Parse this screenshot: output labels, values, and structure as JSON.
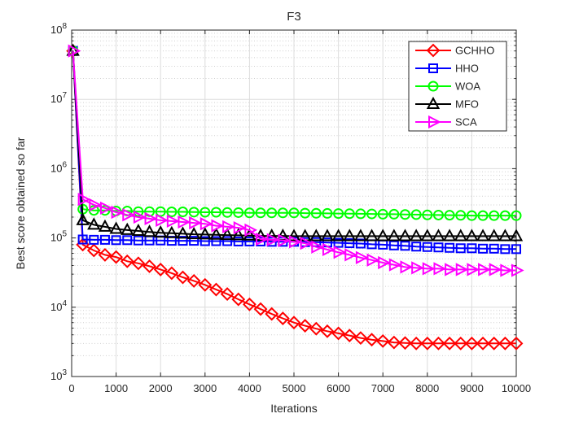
{
  "figure": {
    "background": "#ffffff",
    "axis_color": "#262626",
    "major_grid_color": "#dcdcdc",
    "minor_grid_color": "#cfcfcf"
  },
  "chart_data": {
    "type": "line",
    "title": "F3",
    "xlabel": "Iterations",
    "ylabel": "Best score obtained so far",
    "y_scale": "log",
    "x_range": [
      0,
      10000
    ],
    "y_range": [
      1000,
      100000000
    ],
    "x_ticks": [
      0,
      1000,
      2000,
      3000,
      4000,
      5000,
      6000,
      7000,
      8000,
      9000,
      10000
    ],
    "y_tick_exponents": [
      3,
      4,
      5,
      6,
      7,
      8
    ],
    "y_tick_base": "10",
    "grid": {
      "major": true,
      "minor_horizontal_dotted": true
    },
    "legend": {
      "position": "northeast-inside",
      "border_color": "#262626",
      "background": "#ffffff"
    },
    "x_values": [
      30,
      250,
      500,
      750,
      1000,
      1250,
      1500,
      1750,
      2000,
      2250,
      2500,
      2750,
      3000,
      3250,
      3500,
      3750,
      4000,
      4250,
      4500,
      4750,
      5000,
      5250,
      5500,
      5750,
      6000,
      6250,
      6500,
      6750,
      7000,
      7250,
      7500,
      7750,
      8000,
      8250,
      8500,
      8750,
      9000,
      9250,
      9500,
      9750,
      10000
    ],
    "series": [
      {
        "name": "GCHHO",
        "color": "#ff0000",
        "marker": "diamond",
        "values": [
          50000000,
          80000,
          66000,
          57000,
          53000,
          46000,
          43000,
          39000,
          35000,
          31000,
          27000,
          24000,
          21000,
          18000,
          15500,
          13000,
          11000,
          9400,
          8000,
          6900,
          6000,
          5400,
          4900,
          4500,
          4200,
          3900,
          3600,
          3400,
          3250,
          3100,
          3050,
          3000,
          3000,
          3000,
          3000,
          3000,
          3000,
          3000,
          3000,
          3000,
          3000
        ]
      },
      {
        "name": "HHO",
        "color": "#0000ff",
        "marker": "square",
        "values": [
          50000000,
          95000,
          94000,
          94000,
          93000,
          93000,
          92000,
          92000,
          92000,
          91000,
          91000,
          91000,
          90000,
          90000,
          90000,
          89000,
          89000,
          89000,
          88000,
          88000,
          88000,
          87000,
          87000,
          86000,
          85000,
          84000,
          83000,
          81000,
          80000,
          78000,
          77000,
          75000,
          74000,
          73000,
          72000,
          71000,
          71000,
          70000,
          70000,
          69000,
          69000
        ]
      },
      {
        "name": "WOA",
        "color": "#00ff00",
        "marker": "circle",
        "values": [
          50000000,
          260000,
          250000,
          250000,
          245000,
          245000,
          240000,
          240000,
          240000,
          238000,
          238000,
          236000,
          235000,
          235000,
          233000,
          232000,
          230000,
          230000,
          230000,
          230000,
          230000,
          228000,
          227000,
          226000,
          225000,
          224000,
          223000,
          222000,
          220000,
          220000,
          218000,
          217000,
          215000,
          214000,
          213000,
          212000,
          210000,
          210000,
          210000,
          210000,
          210000
        ]
      },
      {
        "name": "MFO",
        "color": "#000000",
        "marker": "triangle-up",
        "values": [
          50000000,
          180000,
          155000,
          145000,
          135000,
          130000,
          126000,
          122000,
          119000,
          117000,
          115000,
          113000,
          112000,
          111000,
          110000,
          109000,
          108000,
          107000,
          107000,
          107000,
          106000,
          106000,
          106000,
          106000,
          106000,
          106000,
          106000,
          106000,
          106000,
          106000,
          106000,
          106000,
          106000,
          106000,
          106000,
          106000,
          106000,
          106000,
          106000,
          106000,
          106000
        ]
      },
      {
        "name": "SCA",
        "color": "#ff00ff",
        "marker": "triangle-right",
        "values": [
          50000000,
          360000,
          300000,
          270000,
          235000,
          215000,
          200000,
          190000,
          180000,
          175000,
          170000,
          165000,
          160000,
          150000,
          145000,
          140000,
          130000,
          96000,
          94000,
          92000,
          88000,
          84000,
          74000,
          68000,
          62000,
          57000,
          52000,
          48000,
          44000,
          41000,
          38000,
          37000,
          36000,
          36000,
          35000,
          35000,
          35000,
          35000,
          35000,
          34000,
          34000
        ]
      }
    ]
  }
}
